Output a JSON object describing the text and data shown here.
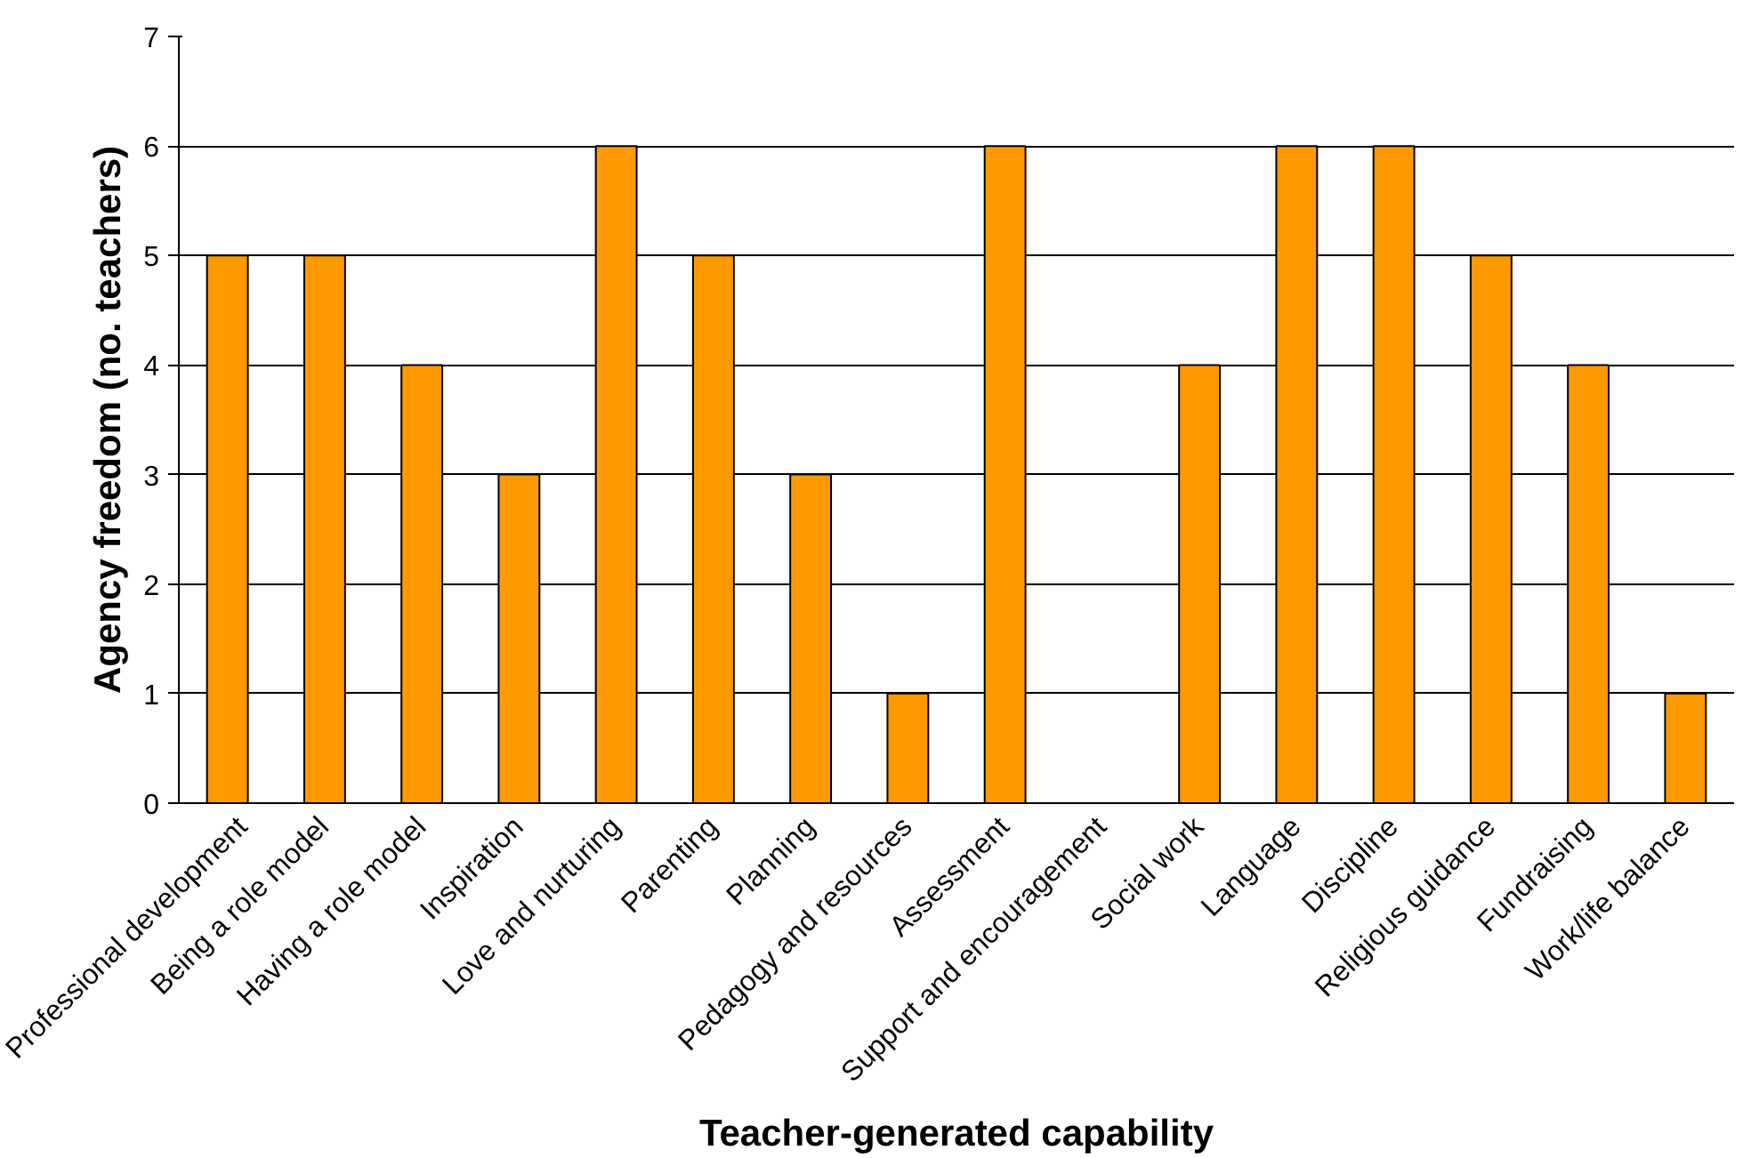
{
  "chart_data": {
    "type": "bar",
    "xlabel": "Teacher-generated capability",
    "ylabel": "Agency freedom (no. teachers)",
    "categories": [
      "Professional development",
      "Being a role model",
      "Having a role model",
      "Inspiration",
      "Love and nurturing",
      "Parenting",
      "Planning",
      "Pedagogy and resources",
      "Assessment",
      "Support and encouragement",
      "Social work",
      "Language",
      "Discipline",
      "Religious guidance",
      "Fundraising",
      "Work/life balance"
    ],
    "values": [
      5,
      5,
      4,
      3,
      6,
      5,
      3,
      1,
      6,
      0,
      4,
      6,
      6,
      5,
      4,
      1
    ],
    "color": "#ff9900",
    "ylim": [
      0,
      7
    ],
    "yticks": [
      0,
      1,
      2,
      3,
      4,
      5,
      6,
      7
    ],
    "grid": "y"
  }
}
